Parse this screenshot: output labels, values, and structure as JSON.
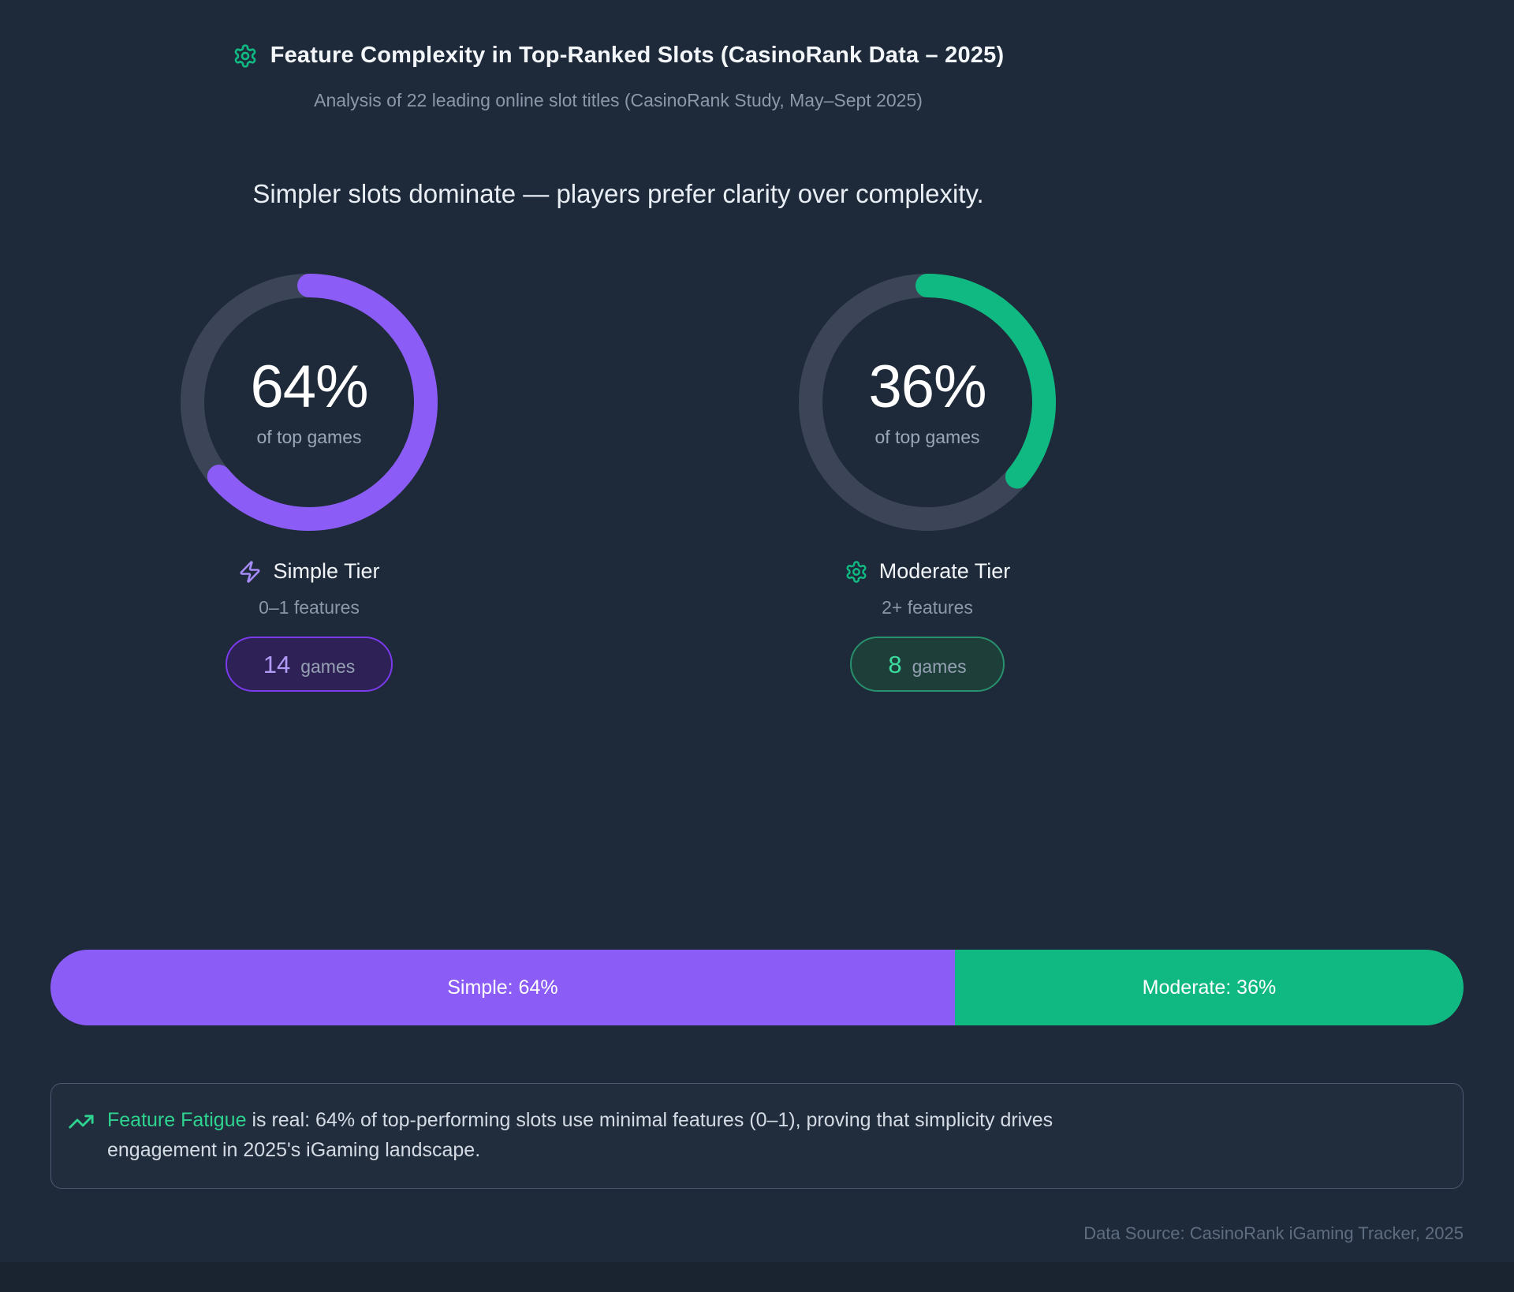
{
  "page": {
    "background": "#1e2a3a",
    "footer_strip_color": "#1a2330"
  },
  "header": {
    "icon": "gear-icon",
    "icon_color": "#10b981",
    "title": "Feature Complexity in Top-Ranked Slots (CasinoRank Data – 2025)",
    "subtitle": "Analysis of 22 leading online slot titles (CasinoRank Study, May–Sept 2025)"
  },
  "headline": "Simpler slots dominate — players prefer clarity over complexity.",
  "chart_data": {
    "type": "pie",
    "title": "Feature Complexity in Top-Ranked Slots (CasinoRank Data – 2025)",
    "subtitle": "Analysis of 22 leading online slot titles (CasinoRank Study, May–Sept 2025)",
    "total_games": 22,
    "categories": [
      "Simple Tier",
      "Moderate Tier"
    ],
    "values": [
      64,
      36
    ],
    "counts": [
      14,
      8
    ],
    "track_color": "#3b4557",
    "legend_position": "below-donuts",
    "segments": [
      {
        "label": "Simple Tier",
        "icon": "lightning-icon",
        "icon_color": "#a78bfa",
        "sublabel": "0–1 features",
        "value": 64,
        "percent_label": "64%",
        "caption": "of top games",
        "games": 14,
        "games_label": "14",
        "games_unit": "games",
        "color": "#8b5cf6",
        "bar_label": "Simple: 64%"
      },
      {
        "label": "Moderate Tier",
        "icon": "gear-icon",
        "icon_color": "#10b981",
        "sublabel": "2+ features",
        "value": 36,
        "percent_label": "36%",
        "caption": "of top games",
        "games": 8,
        "games_label": "8",
        "games_unit": "games",
        "color": "#10b981",
        "bar_label": "Moderate: 36%"
      }
    ]
  },
  "insight": {
    "icon": "trending-up-icon",
    "icon_color": "#2ed38f",
    "highlight_color": "#2ed38f",
    "highlight": "Feature Fatigue",
    "text": " is real: 64% of top-performing slots use minimal features (0–1), proving that simplicity drives engagement in 2025's iGaming landscape."
  },
  "footer": {
    "source": "Data Source: CasinoRank iGaming Tracker, 2025"
  }
}
